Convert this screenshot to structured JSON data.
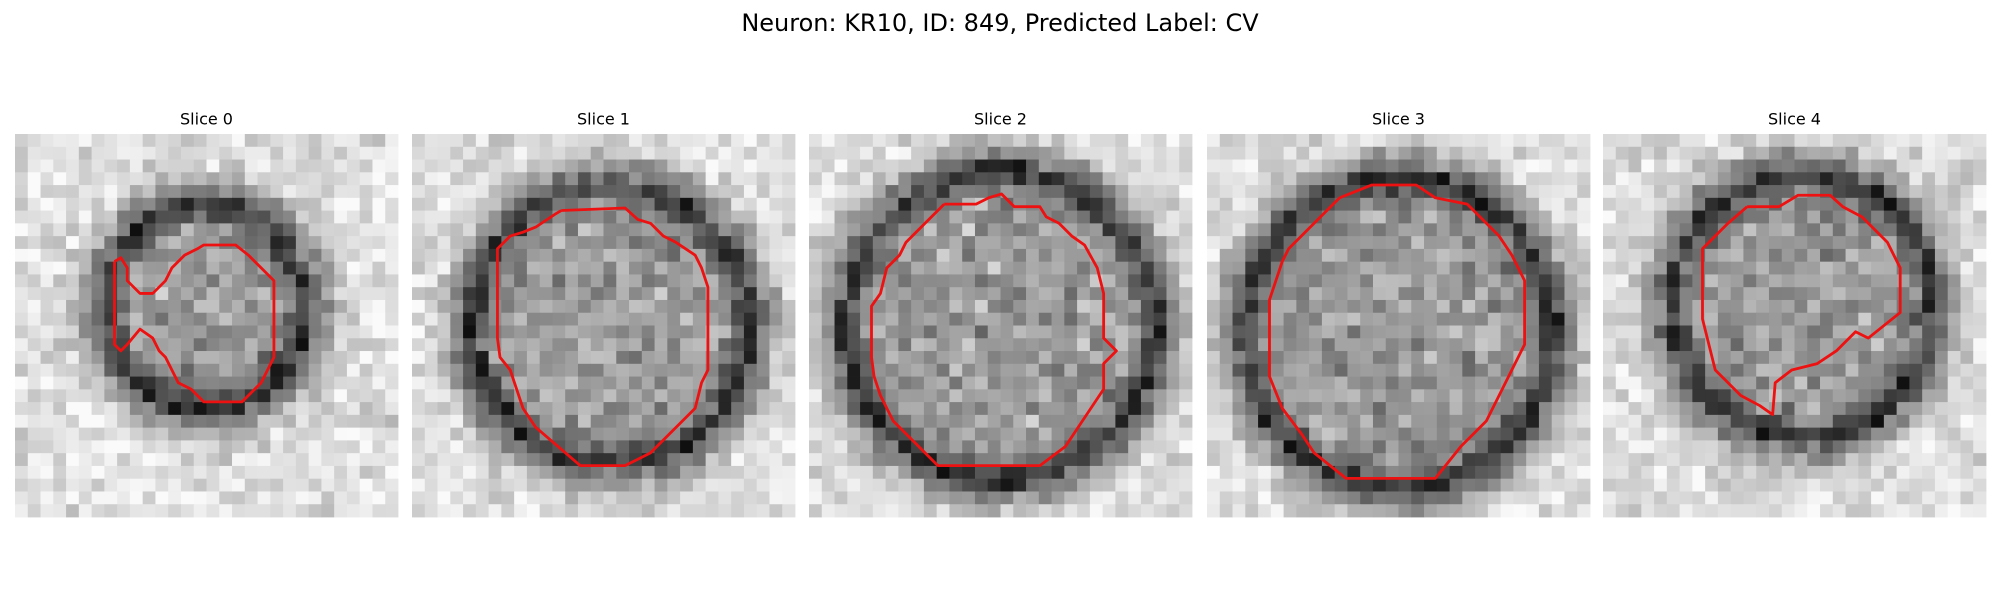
{
  "title": "Neuron: KR10, ID: 849, Predicted Label: CV",
  "panels": [
    {
      "title": "Slice 0"
    },
    {
      "title": "Slice 1"
    },
    {
      "title": "Slice 2"
    },
    {
      "title": "Slice 3"
    },
    {
      "title": "Slice 4"
    }
  ]
}
